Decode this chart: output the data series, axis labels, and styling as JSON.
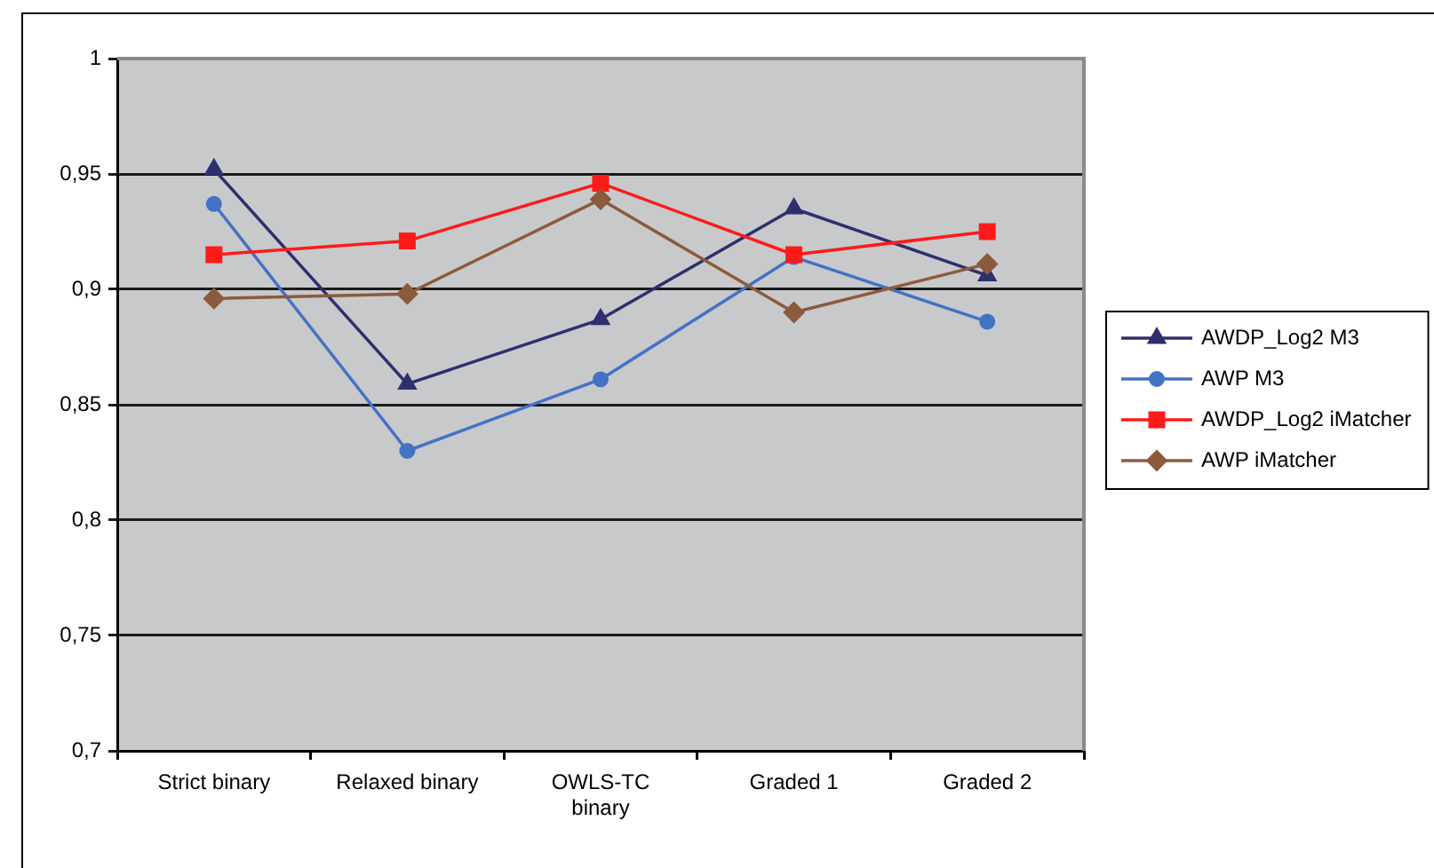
{
  "chart_data": {
    "type": "line",
    "categories": [
      "Strict binary",
      "Relaxed binary",
      "OWLS-TC binary",
      "Graded 1",
      "Graded 2"
    ],
    "series": [
      {
        "name": "AWDP_Log2 M3",
        "color": "#2f2f6e",
        "marker": "triangle",
        "values": [
          0.952,
          0.859,
          0.887,
          0.935,
          0.906
        ]
      },
      {
        "name": "AWP M3",
        "color": "#4472c4",
        "marker": "circle",
        "values": [
          0.937,
          0.83,
          0.861,
          0.914,
          0.886
        ]
      },
      {
        "name": "AWDP_Log2 iMatcher",
        "color": "#ff1a1a",
        "marker": "square",
        "values": [
          0.915,
          0.921,
          0.946,
          0.915,
          0.925
        ]
      },
      {
        "name": "AWP iMatcher",
        "color": "#8c5a3c",
        "marker": "diamond",
        "values": [
          0.896,
          0.898,
          0.939,
          0.89,
          0.911
        ]
      }
    ],
    "ylim": [
      0.7,
      1
    ],
    "yticks": [
      {
        "value": 0.7,
        "label": "0,7"
      },
      {
        "value": 0.75,
        "label": "0,75"
      },
      {
        "value": 0.8,
        "label": "0,8"
      },
      {
        "value": 0.85,
        "label": "0,85"
      },
      {
        "value": 0.9,
        "label": "0,9"
      },
      {
        "value": 0.95,
        "label": "0,95"
      },
      1
    ],
    "grid": "y",
    "legend": "right",
    "line_style": "solid"
  }
}
